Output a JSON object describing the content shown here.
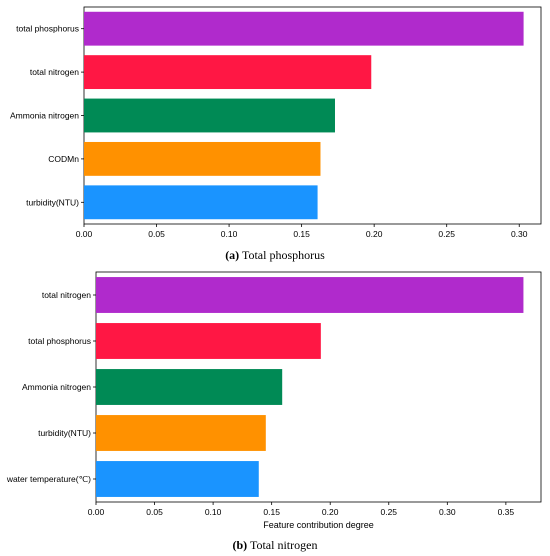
{
  "chart_data": [
    {
      "type": "bar",
      "orientation": "horizontal",
      "categories": [
        "total phosphorus",
        "total nitrogen",
        "Ammonia nitrogen",
        "CODMn",
        "turbidity(NTU)"
      ],
      "values": [
        0.303,
        0.198,
        0.173,
        0.163,
        0.161
      ],
      "colors": [
        "#b02acc",
        "#ff1744",
        "#008a55",
        "#ff9100",
        "#1a94ff"
      ],
      "xlim": [
        0,
        0.315
      ],
      "xticks": [
        "0.00",
        "0.05",
        "0.10",
        "0.15",
        "0.20",
        "0.25",
        "0.30"
      ],
      "xlabel": "",
      "caption_label": "(a)",
      "caption_text": "Total phosphorus"
    },
    {
      "type": "bar",
      "orientation": "horizontal",
      "categories": [
        "total nitrogen",
        "total phosphorus",
        "Ammonia nitrogen",
        "turbidity(NTU)",
        "water temperature(℃)"
      ],
      "values": [
        0.365,
        0.192,
        0.159,
        0.145,
        0.139
      ],
      "colors": [
        "#b02acc",
        "#ff1744",
        "#008a55",
        "#ff9100",
        "#1a94ff"
      ],
      "xlim": [
        0,
        0.38
      ],
      "xticks": [
        "0.00",
        "0.05",
        "0.10",
        "0.15",
        "0.20",
        "0.25",
        "0.30",
        "0.35"
      ],
      "xlabel": "Feature contribution degree",
      "caption_label": "(b)",
      "caption_text": "Total nitrogen"
    }
  ]
}
